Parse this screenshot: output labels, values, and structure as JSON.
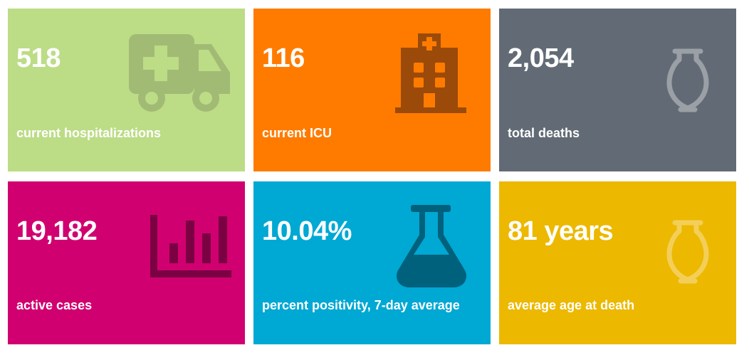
{
  "cards": [
    {
      "value": "518",
      "label": "current hospitalizations",
      "color": "#bcdc86",
      "icon": "ambulance-icon",
      "icon_color": "#a1bb75"
    },
    {
      "value": "116",
      "label": "current ICU",
      "color": "#ff7b00",
      "icon": "hospital-icon",
      "icon_color": "#9b4a0a"
    },
    {
      "value": "2,054",
      "label": "total deaths",
      "color": "#626b75",
      "icon": "urn-icon",
      "icon_color": "#9aa0a6"
    },
    {
      "value": "19,182",
      "label": "active cases",
      "color": "#d10070",
      "icon": "bar-chart-icon",
      "icon_color": "#7a0142"
    },
    {
      "value": "10.04%",
      "label": "percent positivity, 7-day average",
      "color": "#00a8d4",
      "icon": "flask-icon",
      "icon_color": "#00617d"
    },
    {
      "value": "81 years",
      "label": "average age at death",
      "color": "#ecb800",
      "icon": "urn-icon",
      "icon_color": "#f3cf59"
    }
  ]
}
